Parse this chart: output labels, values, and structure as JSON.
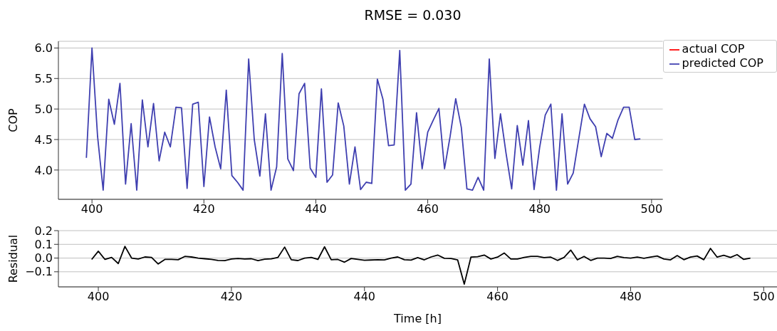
{
  "chart_data": [
    {
      "type": "line",
      "title": "RMSE = 0.030",
      "ylabel": "COP",
      "x": [
        399,
        400,
        401,
        402,
        403,
        404,
        405,
        406,
        407,
        408,
        409,
        410,
        411,
        412,
        413,
        414,
        415,
        416,
        417,
        418,
        419,
        420,
        421,
        422,
        423,
        424,
        425,
        426,
        427,
        428,
        429,
        430,
        431,
        432,
        433,
        434,
        435,
        436,
        437,
        438,
        439,
        440,
        441,
        442,
        443,
        444,
        445,
        446,
        447,
        448,
        449,
        450,
        451,
        452,
        453,
        454,
        455,
        456,
        457,
        458,
        459,
        460,
        461,
        462,
        463,
        464,
        465,
        466,
        467,
        468,
        469,
        470,
        471,
        472,
        473,
        474,
        475,
        476,
        477,
        478,
        479,
        480,
        481,
        482,
        483,
        484,
        485,
        486,
        487,
        488,
        489,
        490,
        491,
        492,
        493,
        494,
        495,
        496,
        497,
        498
      ],
      "series": [
        {
          "name": "actual COP",
          "color": "#ff0000",
          "values": [
            null,
            null,
            null,
            null,
            null,
            null,
            null,
            null,
            null,
            null,
            null,
            null,
            null,
            null,
            null,
            null,
            null,
            null,
            null,
            null,
            null,
            null,
            null,
            null,
            null,
            null,
            null,
            null,
            null,
            null,
            null,
            null,
            null,
            null,
            null,
            null,
            null,
            null,
            null,
            null,
            null,
            null,
            null,
            null,
            null,
            null,
            null,
            null,
            null,
            null,
            null,
            null,
            null,
            null,
            null,
            null,
            null,
            null,
            null,
            null,
            null,
            null,
            null,
            null,
            null,
            null,
            null,
            null,
            null,
            null,
            null,
            null,
            null,
            null,
            null,
            null,
            null,
            null,
            null,
            null,
            null,
            null,
            null,
            null,
            null,
            null,
            null,
            null,
            null,
            null,
            null,
            null,
            null,
            null,
            null,
            null,
            null,
            null,
            null,
            null
          ]
        },
        {
          "name": "predicted COP",
          "color": "#3f3fb0",
          "values": [
            4.2,
            6.0,
            4.55,
            3.67,
            5.16,
            4.75,
            5.42,
            3.77,
            4.76,
            3.67,
            5.15,
            4.38,
            5.09,
            4.15,
            4.62,
            4.38,
            5.03,
            5.02,
            3.7,
            5.08,
            5.11,
            3.73,
            4.87,
            4.38,
            4.02,
            5.31,
            3.91,
            3.8,
            3.67,
            5.82,
            4.5,
            3.9,
            4.92,
            3.67,
            4.05,
            5.91,
            4.18,
            3.99,
            5.25,
            5.42,
            4.03,
            3.88,
            5.33,
            3.8,
            3.92,
            5.1,
            4.72,
            3.77,
            4.38,
            3.68,
            3.8,
            3.78,
            5.49,
            5.16,
            4.4,
            4.41,
            5.96,
            3.67,
            3.77,
            4.94,
            4.02,
            4.62,
            4.82,
            5.01,
            4.02,
            4.55,
            5.17,
            4.7,
            3.69,
            3.67,
            3.88,
            3.67,
            5.82,
            4.19,
            4.92,
            4.27,
            3.69,
            4.73,
            4.08,
            4.81,
            3.68,
            4.37,
            4.9,
            5.08,
            3.67,
            4.92,
            3.77,
            3.95,
            4.52,
            5.08,
            4.84,
            4.71,
            4.22,
            4.6,
            4.52,
            4.82,
            5.03,
            5.03,
            4.5,
            4.51
          ]
        }
      ],
      "xlim": [
        394,
        502
      ],
      "xticks": [
        400,
        420,
        440,
        460,
        480,
        500
      ],
      "ylim": [
        3.52,
        6.11
      ],
      "yticks": [
        {
          "value": 4,
          "label": "4.0"
        },
        4.5,
        {
          "value": 5,
          "label": "5.0"
        },
        5.5,
        {
          "value": 6,
          "label": "6.0"
        }
      ],
      "grid": "y",
      "legend": "top right"
    },
    {
      "type": "line",
      "xlabel": "Time [h]",
      "ylabel": "Residual",
      "x": [
        399,
        400,
        401,
        402,
        403,
        404,
        405,
        406,
        407,
        408,
        409,
        410,
        411,
        412,
        413,
        414,
        415,
        416,
        417,
        418,
        419,
        420,
        421,
        422,
        423,
        424,
        425,
        426,
        427,
        428,
        429,
        430,
        431,
        432,
        433,
        434,
        435,
        436,
        437,
        438,
        439,
        440,
        441,
        442,
        443,
        444,
        445,
        446,
        447,
        448,
        449,
        450,
        451,
        452,
        453,
        454,
        455,
        456,
        457,
        458,
        459,
        460,
        461,
        462,
        463,
        464,
        465,
        466,
        467,
        468,
        469,
        470,
        471,
        472,
        473,
        474,
        475,
        476,
        477,
        478,
        479,
        480,
        481,
        482,
        483,
        484,
        485,
        486,
        487,
        488,
        489,
        490,
        491,
        492,
        493,
        494,
        495,
        496,
        497,
        498
      ],
      "series": [
        {
          "color": "#000000",
          "values": [
            -0.01,
            0.05,
            -0.01,
            0.005,
            -0.04,
            0.085,
            0.0,
            -0.007,
            0.008,
            0.005,
            -0.043,
            -0.01,
            -0.01,
            -0.012,
            0.012,
            0.008,
            0.0,
            -0.005,
            -0.01,
            -0.017,
            -0.019,
            -0.007,
            -0.003,
            -0.007,
            -0.005,
            -0.019,
            -0.008,
            -0.006,
            0.005,
            0.08,
            -0.012,
            -0.018,
            0.0,
            0.005,
            -0.01,
            0.082,
            -0.012,
            -0.01,
            -0.03,
            -0.003,
            -0.01,
            -0.016,
            -0.014,
            -0.012,
            -0.013,
            0.0,
            0.008,
            -0.012,
            -0.015,
            0.003,
            -0.013,
            0.008,
            0.022,
            -0.002,
            -0.003,
            -0.013,
            -0.19,
            0.007,
            0.01,
            0.022,
            -0.007,
            0.007,
            0.037,
            -0.007,
            -0.007,
            0.005,
            0.012,
            0.013,
            0.003,
            0.007,
            -0.017,
            0.005,
            0.058,
            -0.013,
            0.012,
            -0.017,
            0.0,
            0.0,
            -0.003,
            0.013,
            0.003,
            0.0,
            0.007,
            -0.002,
            0.007,
            0.015,
            -0.007,
            -0.013,
            0.018,
            -0.012,
            0.007,
            0.015,
            -0.012,
            0.07,
            0.007,
            0.02,
            0.005,
            0.025,
            -0.01,
            0.0
          ]
        }
      ],
      "xlim": [
        394,
        502
      ],
      "xticks": [
        400,
        420,
        440,
        460,
        480,
        500
      ],
      "ylim": [
        -0.21,
        0.2
      ],
      "yticks": [
        -0.1,
        {
          "value": 0,
          "label": "0.0"
        },
        0.1,
        0.2
      ],
      "grid": "y"
    }
  ]
}
